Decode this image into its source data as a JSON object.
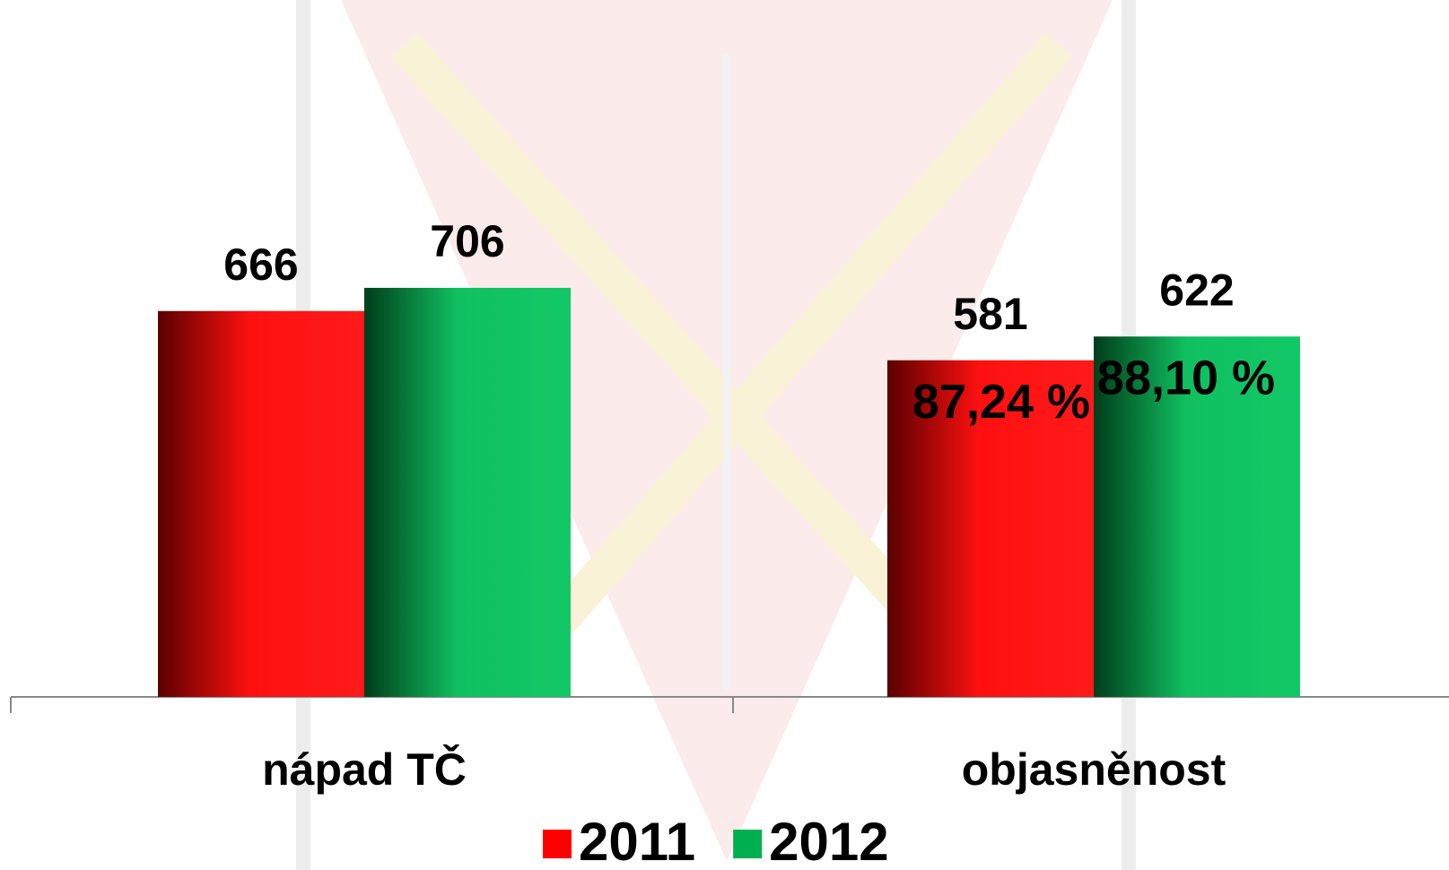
{
  "chart_data": {
    "type": "bar",
    "categories": [
      "nápad TČ",
      "objasněnost"
    ],
    "series": [
      {
        "name": "2011",
        "color": "#ff0000",
        "values": [
          666,
          581
        ]
      },
      {
        "name": "2012",
        "color": "#00b050",
        "values": [
          706,
          622
        ]
      }
    ],
    "annotations": [
      "87,24 %",
      "88,10 %"
    ],
    "ylim": [
      0,
      1000
    ],
    "legend": "bottom"
  }
}
